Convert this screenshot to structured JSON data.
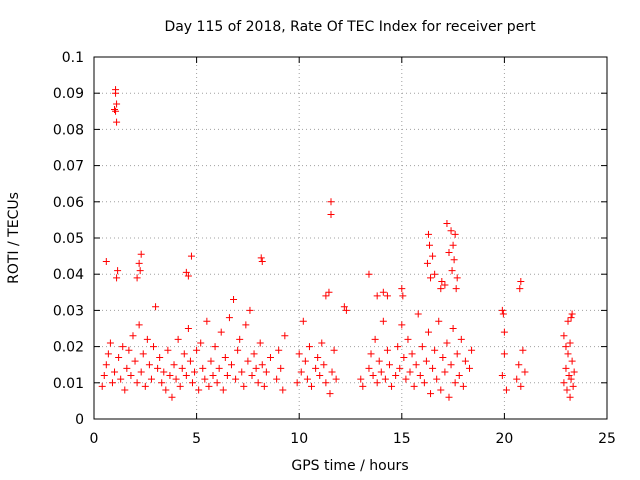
{
  "chart_data": {
    "type": "scatter",
    "title": "Day 115 of 2018, Rate Of TEC Index for receiver pert",
    "xlabel": "GPS time / hours",
    "ylabel": "ROTI / TECUs",
    "xlim": [
      0,
      25
    ],
    "ylim": [
      0,
      0.1
    ],
    "xticks": [
      0,
      5,
      10,
      15,
      20,
      25
    ],
    "yticks": [
      0,
      0.01,
      0.02,
      0.03,
      0.04,
      0.05,
      0.06,
      0.07,
      0.08,
      0.09,
      0.1
    ],
    "xtick_labels": [
      "0",
      "5",
      "10",
      "15",
      "20",
      "25"
    ],
    "ytick_labels": [
      "0",
      "0.01",
      "0.02",
      "0.03",
      "0.04",
      "0.05",
      "0.06",
      "0.07",
      "0.08",
      "0.09",
      "0.1"
    ],
    "grid": true,
    "marker": "+",
    "color": "#ff0000",
    "series": [
      {
        "points": [
          [
            1.05,
            0.09
          ],
          [
            1.05,
            0.091
          ],
          [
            1.1,
            0.087
          ],
          [
            1.05,
            0.085
          ],
          [
            1.1,
            0.082
          ],
          [
            1.0,
            0.0855
          ],
          [
            11.55,
            0.06
          ],
          [
            11.55,
            0.0565
          ],
          [
            0.6,
            0.0435
          ],
          [
            4.75,
            0.045
          ],
          [
            4.5,
            0.0405
          ],
          [
            4.6,
            0.0395
          ],
          [
            8.15,
            0.0445
          ],
          [
            8.2,
            0.0435
          ],
          [
            13.4,
            0.04
          ],
          [
            2.3,
            0.0455
          ],
          [
            2.2,
            0.043
          ],
          [
            2.25,
            0.041
          ],
          [
            2.1,
            0.039
          ],
          [
            1.15,
            0.041
          ],
          [
            1.1,
            0.039
          ],
          [
            11.3,
            0.034
          ],
          [
            11.45,
            0.035
          ],
          [
            12.2,
            0.031
          ],
          [
            12.3,
            0.03
          ],
          [
            20.8,
            0.038
          ],
          [
            20.75,
            0.036
          ],
          [
            16.3,
            0.051
          ],
          [
            16.35,
            0.048
          ],
          [
            16.5,
            0.045
          ],
          [
            16.25,
            0.043
          ],
          [
            16.6,
            0.04
          ],
          [
            16.4,
            0.039
          ],
          [
            17.2,
            0.054
          ],
          [
            17.4,
            0.052
          ],
          [
            17.6,
            0.051
          ],
          [
            17.5,
            0.048
          ],
          [
            17.3,
            0.046
          ],
          [
            17.55,
            0.044
          ],
          [
            17.45,
            0.041
          ],
          [
            17.7,
            0.039
          ],
          [
            17.1,
            0.037
          ],
          [
            17.65,
            0.036
          ],
          [
            16.9,
            0.036
          ],
          [
            16.95,
            0.038
          ],
          [
            15.0,
            0.036
          ],
          [
            15.05,
            0.034
          ],
          [
            14.1,
            0.035
          ],
          [
            14.3,
            0.034
          ],
          [
            13.8,
            0.034
          ],
          [
            19.9,
            0.03
          ],
          [
            19.95,
            0.029
          ],
          [
            22.9,
            0.023
          ],
          [
            23.3,
            0.029
          ],
          [
            23.25,
            0.028
          ],
          [
            23.1,
            0.027
          ],
          [
            0.4,
            0.009
          ],
          [
            0.5,
            0.012
          ],
          [
            0.6,
            0.015
          ],
          [
            0.7,
            0.018
          ],
          [
            0.8,
            0.021
          ],
          [
            0.9,
            0.01
          ],
          [
            1.0,
            0.013
          ],
          [
            1.2,
            0.017
          ],
          [
            1.3,
            0.011
          ],
          [
            1.4,
            0.02
          ],
          [
            1.5,
            0.008
          ],
          [
            1.6,
            0.014
          ],
          [
            1.7,
            0.019
          ],
          [
            1.8,
            0.012
          ],
          [
            1.9,
            0.023
          ],
          [
            2.0,
            0.016
          ],
          [
            2.1,
            0.01
          ],
          [
            2.2,
            0.026
          ],
          [
            2.3,
            0.013
          ],
          [
            2.4,
            0.018
          ],
          [
            2.5,
            0.009
          ],
          [
            2.6,
            0.022
          ],
          [
            2.7,
            0.015
          ],
          [
            2.8,
            0.011
          ],
          [
            2.9,
            0.02
          ],
          [
            3.0,
            0.031
          ],
          [
            3.1,
            0.014
          ],
          [
            3.2,
            0.017
          ],
          [
            3.3,
            0.01
          ],
          [
            3.4,
            0.013
          ],
          [
            3.5,
            0.008
          ],
          [
            3.6,
            0.019
          ],
          [
            3.7,
            0.012
          ],
          [
            3.8,
            0.006
          ],
          [
            3.9,
            0.015
          ],
          [
            4.0,
            0.011
          ],
          [
            4.1,
            0.022
          ],
          [
            4.2,
            0.009
          ],
          [
            4.3,
            0.014
          ],
          [
            4.4,
            0.018
          ],
          [
            4.5,
            0.012
          ],
          [
            4.6,
            0.025
          ],
          [
            4.7,
            0.016
          ],
          [
            4.8,
            0.01
          ],
          [
            4.9,
            0.013
          ],
          [
            5.0,
            0.019
          ],
          [
            5.1,
            0.008
          ],
          [
            5.2,
            0.021
          ],
          [
            5.3,
            0.014
          ],
          [
            5.4,
            0.011
          ],
          [
            5.5,
            0.027
          ],
          [
            5.6,
            0.009
          ],
          [
            5.7,
            0.016
          ],
          [
            5.8,
            0.012
          ],
          [
            5.9,
            0.02
          ],
          [
            6.0,
            0.01
          ],
          [
            6.1,
            0.014
          ],
          [
            6.2,
            0.024
          ],
          [
            6.3,
            0.008
          ],
          [
            6.4,
            0.017
          ],
          [
            6.5,
            0.012
          ],
          [
            6.6,
            0.028
          ],
          [
            6.7,
            0.015
          ],
          [
            6.8,
            0.033
          ],
          [
            6.9,
            0.011
          ],
          [
            7.0,
            0.019
          ],
          [
            7.1,
            0.022
          ],
          [
            7.2,
            0.013
          ],
          [
            7.3,
            0.009
          ],
          [
            7.4,
            0.026
          ],
          [
            7.5,
            0.016
          ],
          [
            7.6,
            0.03
          ],
          [
            7.7,
            0.012
          ],
          [
            7.8,
            0.018
          ],
          [
            7.9,
            0.014
          ],
          [
            8.0,
            0.01
          ],
          [
            8.1,
            0.021
          ],
          [
            8.2,
            0.015
          ],
          [
            8.3,
            0.009
          ],
          [
            8.4,
            0.013
          ],
          [
            8.6,
            0.017
          ],
          [
            8.9,
            0.011
          ],
          [
            9.0,
            0.019
          ],
          [
            9.1,
            0.014
          ],
          [
            9.2,
            0.008
          ],
          [
            9.3,
            0.023
          ],
          [
            9.9,
            0.01
          ],
          [
            10.0,
            0.018
          ],
          [
            10.1,
            0.013
          ],
          [
            10.2,
            0.027
          ],
          [
            10.3,
            0.016
          ],
          [
            10.4,
            0.011
          ],
          [
            10.5,
            0.02
          ],
          [
            10.6,
            0.009
          ],
          [
            10.8,
            0.014
          ],
          [
            10.9,
            0.017
          ],
          [
            11.0,
            0.012
          ],
          [
            11.1,
            0.021
          ],
          [
            11.2,
            0.015
          ],
          [
            11.3,
            0.01
          ],
          [
            11.5,
            0.007
          ],
          [
            11.6,
            0.013
          ],
          [
            11.7,
            0.019
          ],
          [
            11.8,
            0.011
          ],
          [
            13.0,
            0.011
          ],
          [
            13.1,
            0.009
          ],
          [
            13.4,
            0.014
          ],
          [
            13.5,
            0.018
          ],
          [
            13.6,
            0.012
          ],
          [
            13.7,
            0.022
          ],
          [
            13.8,
            0.01
          ],
          [
            13.9,
            0.016
          ],
          [
            14.0,
            0.013
          ],
          [
            14.1,
            0.027
          ],
          [
            14.2,
            0.011
          ],
          [
            14.3,
            0.019
          ],
          [
            14.4,
            0.015
          ],
          [
            14.5,
            0.009
          ],
          [
            14.7,
            0.012
          ],
          [
            14.8,
            0.02
          ],
          [
            14.9,
            0.014
          ],
          [
            15.0,
            0.026
          ],
          [
            15.1,
            0.017
          ],
          [
            15.2,
            0.011
          ],
          [
            15.3,
            0.022
          ],
          [
            15.4,
            0.013
          ],
          [
            15.5,
            0.018
          ],
          [
            15.6,
            0.009
          ],
          [
            15.7,
            0.015
          ],
          [
            15.8,
            0.029
          ],
          [
            15.9,
            0.012
          ],
          [
            16.0,
            0.02
          ],
          [
            16.1,
            0.01
          ],
          [
            16.2,
            0.016
          ],
          [
            16.3,
            0.024
          ],
          [
            16.4,
            0.007
          ],
          [
            16.5,
            0.014
          ],
          [
            16.6,
            0.019
          ],
          [
            16.7,
            0.011
          ],
          [
            16.8,
            0.027
          ],
          [
            16.9,
            0.008
          ],
          [
            17.0,
            0.017
          ],
          [
            17.1,
            0.013
          ],
          [
            17.2,
            0.021
          ],
          [
            17.3,
            0.006
          ],
          [
            17.4,
            0.015
          ],
          [
            17.5,
            0.025
          ],
          [
            17.6,
            0.01
          ],
          [
            17.7,
            0.018
          ],
          [
            17.8,
            0.012
          ],
          [
            17.9,
            0.022
          ],
          [
            18.0,
            0.009
          ],
          [
            18.1,
            0.016
          ],
          [
            18.3,
            0.014
          ],
          [
            18.4,
            0.019
          ],
          [
            19.9,
            0.012
          ],
          [
            20.0,
            0.018
          ],
          [
            20.1,
            0.008
          ],
          [
            20.0,
            0.024
          ],
          [
            20.6,
            0.011
          ],
          [
            20.7,
            0.015
          ],
          [
            20.8,
            0.009
          ],
          [
            20.9,
            0.019
          ],
          [
            21.0,
            0.013
          ],
          [
            22.9,
            0.01
          ],
          [
            23.0,
            0.014
          ],
          [
            23.05,
            0.008
          ],
          [
            23.1,
            0.018
          ],
          [
            23.15,
            0.012
          ],
          [
            23.2,
            0.021
          ],
          [
            23.25,
            0.011
          ],
          [
            23.3,
            0.016
          ],
          [
            23.35,
            0.009
          ],
          [
            23.4,
            0.013
          ],
          [
            23.0,
            0.02
          ],
          [
            23.2,
            0.006
          ]
        ]
      }
    ]
  }
}
